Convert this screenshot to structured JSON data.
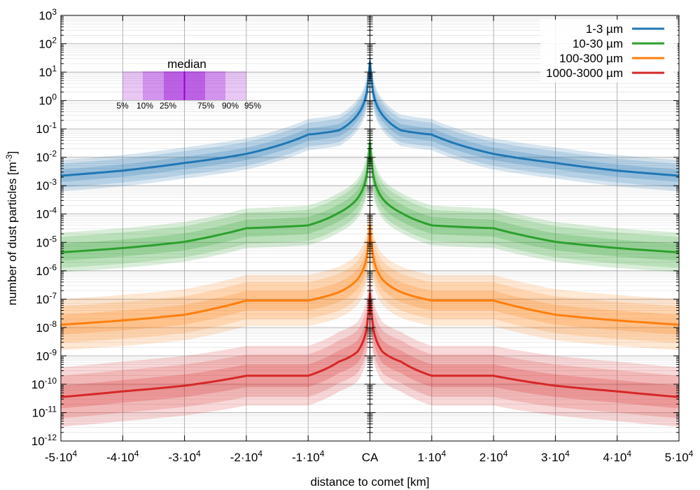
{
  "chart_data": {
    "type": "line",
    "xlabel": "distance to comet [km]",
    "ylabel_main": "number of dust particles [m",
    "ylabel_sup": "-3",
    "ylabel_end": "]",
    "xlim": [
      -50000,
      50000
    ],
    "ylim_log10": [
      -12,
      3
    ],
    "log_y": true,
    "grid": true,
    "legend_position": "top-right",
    "x_ticks": [
      {
        "value": -50000,
        "base": "-5·10",
        "exp": "4"
      },
      {
        "value": -40000,
        "base": "-4·10",
        "exp": "4"
      },
      {
        "value": -30000,
        "base": "-3·10",
        "exp": "4"
      },
      {
        "value": -20000,
        "base": "-2·10",
        "exp": "4"
      },
      {
        "value": -10000,
        "base": "-1·10",
        "exp": "4"
      },
      {
        "value": 0,
        "base": "CA",
        "exp": ""
      },
      {
        "value": 10000,
        "base": "1·10",
        "exp": "4"
      },
      {
        "value": 20000,
        "base": "2·10",
        "exp": "4"
      },
      {
        "value": 30000,
        "base": "3·10",
        "exp": "4"
      },
      {
        "value": 40000,
        "base": "4·10",
        "exp": "4"
      },
      {
        "value": 50000,
        "base": "5·10",
        "exp": "4"
      }
    ],
    "y_ticks": [
      {
        "value": 3,
        "base": "10",
        "exp": "3"
      },
      {
        "value": 2,
        "base": "10",
        "exp": "2"
      },
      {
        "value": 1,
        "base": "10",
        "exp": "1"
      },
      {
        "value": 0,
        "base": "10",
        "exp": "0"
      },
      {
        "value": -1,
        "base": "10",
        "exp": "-1"
      },
      {
        "value": -2,
        "base": "10",
        "exp": "-2"
      },
      {
        "value": -3,
        "base": "10",
        "exp": "-3"
      },
      {
        "value": -4,
        "base": "10",
        "exp": "-4"
      },
      {
        "value": -5,
        "base": "10",
        "exp": "-5"
      },
      {
        "value": -6,
        "base": "10",
        "exp": "-6"
      },
      {
        "value": -7,
        "base": "10",
        "exp": "-7"
      },
      {
        "value": -8,
        "base": "10",
        "exp": "-8"
      },
      {
        "value": -9,
        "base": "10",
        "exp": "-9"
      },
      {
        "value": -10,
        "base": "10",
        "exp": "-10"
      },
      {
        "value": -11,
        "base": "10",
        "exp": "-11"
      },
      {
        "value": -12,
        "base": "10",
        "exp": "-12"
      }
    ],
    "series": [
      {
        "name": "1-3 µm",
        "color": "#1f77b4",
        "x": [
          0,
          500,
          2000,
          5000,
          10000,
          20000,
          30000,
          40000,
          50000
        ],
        "median_log10": [
          1.35,
          0.3,
          -0.5,
          -1.05,
          -1.2,
          -1.88,
          -2.2,
          -2.47,
          -2.65
        ],
        "band_offsets_log10": {
          "p25_p75": 0.22,
          "p10_p90": 0.42,
          "p5_p95": 0.55
        }
      },
      {
        "name": "10-30 µm",
        "color": "#2ca02c",
        "x": [
          0,
          500,
          2000,
          5000,
          10000,
          20000,
          30000,
          40000,
          50000
        ],
        "median_log10": [
          -1.5,
          -2.6,
          -3.45,
          -3.95,
          -4.4,
          -4.5,
          -4.98,
          -5.2,
          -5.35
        ],
        "band_offsets_log10": {
          "p25_p75": 0.3,
          "p10_p90": 0.55,
          "p5_p95": 0.7
        }
      },
      {
        "name": "100-300 µm",
        "color": "#ff7f0e",
        "x": [
          0,
          500,
          2000,
          5000,
          10000,
          20000,
          30000,
          40000,
          50000
        ],
        "median_log10": [
          -4.4,
          -5.5,
          -6.3,
          -6.75,
          -7.05,
          -7.05,
          -7.55,
          -7.75,
          -7.9
        ],
        "band_offsets_log10": {
          "p25_p75": 0.35,
          "p10_p90": 0.65,
          "p5_p95": 0.9
        }
      },
      {
        "name": "1000-3000 µm",
        "color": "#d62728",
        "x": [
          0,
          500,
          2000,
          5000,
          10000,
          20000,
          30000,
          40000,
          50000
        ],
        "median_log10": [
          -6.8,
          -8.0,
          -8.85,
          -9.2,
          -9.7,
          -9.7,
          -10.05,
          -10.25,
          -10.45
        ],
        "band_offsets_log10": {
          "p25_p75": 0.4,
          "p10_p90": 0.75,
          "p5_p95": 1.05
        }
      }
    ],
    "percentile_key": {
      "title": "median",
      "labels": [
        "5%",
        "10%",
        "25%",
        "75%",
        "90%",
        "95%"
      ],
      "color": "#9400d3"
    }
  }
}
